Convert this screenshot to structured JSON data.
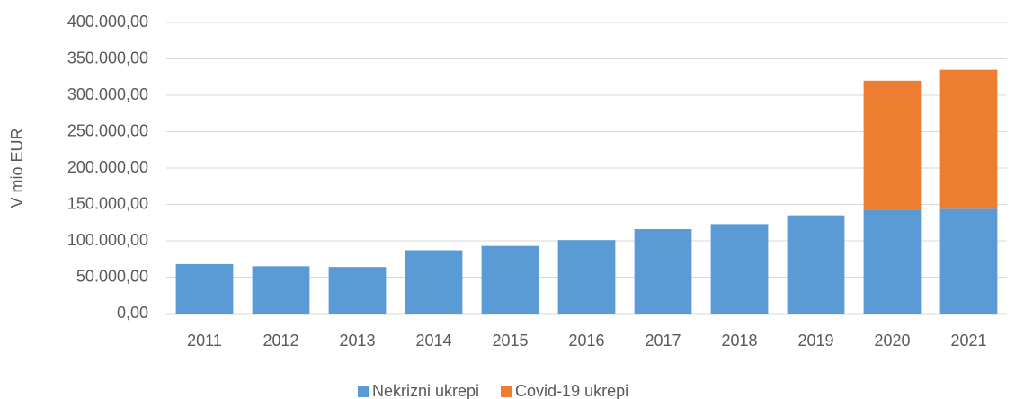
{
  "chart_data": {
    "type": "stacked_bar",
    "y_axis_label": "V mio EUR",
    "categories": [
      "2011",
      "2012",
      "2013",
      "2014",
      "2015",
      "2016",
      "2017",
      "2018",
      "2019",
      "2020",
      "2021"
    ],
    "series": [
      {
        "name": "Nekrizni ukrepi",
        "color": "#5b9bd5",
        "values": [
          68000,
          65000,
          64000,
          87000,
          93000,
          101000,
          116000,
          123000,
          135000,
          143000,
          144000
        ]
      },
      {
        "name": "Covid-19 ukrepi",
        "color": "#ed7d31",
        "values": [
          null,
          null,
          null,
          null,
          null,
          null,
          null,
          null,
          null,
          177000,
          191000
        ]
      }
    ],
    "ylim": [
      0,
      400000
    ],
    "yticks": [
      {
        "value": 0,
        "label": "0,00"
      },
      {
        "value": 50000,
        "label": "50.000,00"
      },
      {
        "value": 100000,
        "label": "100.000,00"
      },
      {
        "value": 150000,
        "label": "150.000,00"
      },
      {
        "value": 200000,
        "label": "200.000,00"
      },
      {
        "value": 250000,
        "label": "250.000,00"
      },
      {
        "value": 300000,
        "label": "300.000,00"
      },
      {
        "value": 350000,
        "label": "350.000,00"
      },
      {
        "value": 400000,
        "label": "400.000,00"
      }
    ],
    "grid": true,
    "legend": "bottom"
  }
}
